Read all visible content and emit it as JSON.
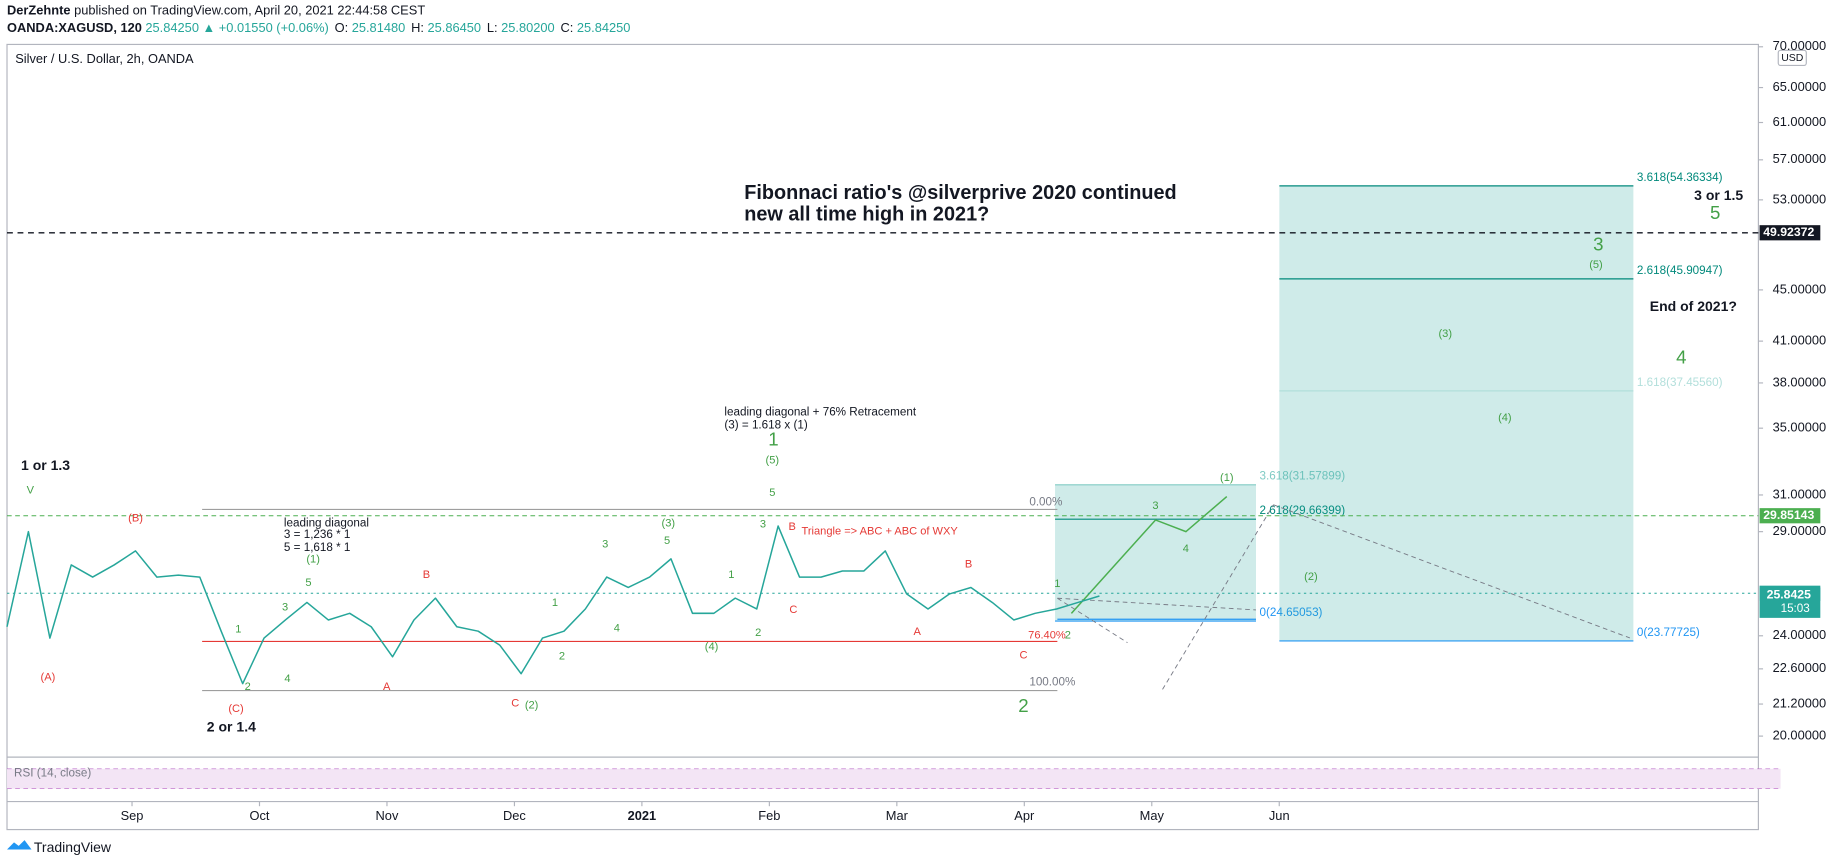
{
  "header": {
    "author": "DerZehnte",
    "published": "published on TradingView.com, April 20, 2021 22:44:58 CEST",
    "quote": [
      "OANDA:XAGUSD, 120",
      "25.84250 ▲ +0.01550 (+0.06%)",
      "O:",
      "25.81480",
      "H:",
      "25.86450",
      "L:",
      "25.80200",
      "C:",
      "25.84250"
    ]
  },
  "chart_data": {
    "type": "line",
    "title": "Silver / U.S. Dollar, 2h, OANDA",
    "currency": "USD",
    "log_scale": true,
    "ylim": [
      19.25,
      70.3
    ],
    "yticks": [
      {
        "value": 70,
        "label": "70.00000"
      },
      {
        "value": 65,
        "label": "65.00000"
      },
      {
        "value": 61,
        "label": "61.00000"
      },
      {
        "value": 57,
        "label": "57.00000"
      },
      {
        "value": 53,
        "label": "53.00000"
      },
      {
        "value": 45,
        "label": "45.00000"
      },
      {
        "value": 41,
        "label": "41.00000"
      },
      {
        "value": 38,
        "label": "38.00000"
      },
      {
        "value": 35,
        "label": "35.00000"
      },
      {
        "value": 31,
        "label": "31.00000"
      },
      {
        "value": 29,
        "label": "29.00000"
      },
      {
        "value": 24,
        "label": "24.00000"
      },
      {
        "value": 22.6,
        "label": "22.60000"
      },
      {
        "value": 21.2,
        "label": "21.20000"
      },
      {
        "value": 20,
        "label": "20.00000"
      }
    ],
    "x_labels": [
      "Sep",
      "Oct",
      "Nov",
      "Dec",
      "2021",
      "Feb",
      "Mar",
      "Apr",
      "May",
      "Jun"
    ],
    "color": "#26a69a",
    "values": [
      24.4,
      29,
      23.9,
      27.3,
      26.7,
      27.3,
      28,
      26.7,
      26.8,
      26.7,
      24.2,
      22,
      23.9,
      24.7,
      25.5,
      24.7,
      25,
      24.4,
      23.1,
      24.7,
      25.7,
      24.4,
      24.2,
      23.6,
      22.4,
      23.9,
      24.2,
      25.2,
      26.7,
      26.2,
      26.7,
      27.6,
      25,
      25,
      25.7,
      25.2,
      29.3,
      26.7,
      26.7,
      27,
      27,
      28,
      25.9,
      25.2,
      25.9,
      26.2,
      25.5,
      24.7,
      25,
      25.2,
      25.5,
      25.8
    ],
    "price_lines": [
      {
        "value": 49.92372,
        "color": "#131722"
      },
      {
        "value": 29.85143,
        "color": "#4caf50"
      },
      {
        "value": 25.92845,
        "color": "#26a69a"
      },
      {
        "value": 25.8425,
        "color": "#26a69a"
      }
    ],
    "countdown": "15:03",
    "fib_boxes": [
      {
        "levels": [
          {
            "value": 31.57899,
            "label": "3.618(31.57899)",
            "color": "#80cbc4"
          },
          {
            "value": 29.66399,
            "label": "2.618(29.66399)",
            "color": "#00897b"
          },
          {
            "value": 24.65053,
            "label": "0(24.65053)",
            "color": "#2196f3"
          }
        ]
      },
      {
        "levels": [
          {
            "value": 54.36334,
            "label": "3.618(54.36334)",
            "color": "#00897b"
          },
          {
            "value": 45.90947,
            "label": "2.618(45.90947)",
            "color": "#00897b"
          },
          {
            "value": 37.4556,
            "label": "1.618(37.45560)",
            "color": "#b2dfdb"
          },
          {
            "value": 23.77725,
            "label": "0(23.77725)",
            "color": "#2196f3"
          }
        ]
      }
    ],
    "indicator": "RSI (14, close)",
    "annotations": [
      {
        "text": "Fibonnaci ratio's @silverprive 2020 continued",
        "style": "h"
      },
      {
        "text": "new all time high in 2021?",
        "style": "h"
      },
      {
        "text": "1 or 1.3",
        "style": "b"
      },
      {
        "text": "2 or 1.4",
        "style": "b"
      },
      {
        "text": "3 or 1.5",
        "style": "b"
      },
      {
        "text": "End of 2021?",
        "style": "b"
      },
      {
        "text": "leading diagonal + 76% Retracement",
        "style": "n"
      },
      {
        "text": "(3) = 1.618 x (1)",
        "style": "n"
      },
      {
        "text": "leading diagonal",
        "style": "n"
      },
      {
        "text": "3 = 1,236 * 1",
        "style": "n"
      },
      {
        "text": "5 = 1,618 * 1",
        "style": "n"
      },
      {
        "text": "V",
        "style": "g"
      },
      {
        "text": "1",
        "style": "G"
      },
      {
        "text": "(5)",
        "style": "g"
      },
      {
        "text": "5",
        "style": "g"
      },
      {
        "text": "3",
        "style": "g"
      },
      {
        "text": "(3)",
        "style": "g"
      },
      {
        "text": "5",
        "style": "g"
      },
      {
        "text": "3",
        "style": "g"
      },
      {
        "text": "1",
        "style": "g"
      },
      {
        "text": "2",
        "style": "g"
      },
      {
        "text": "(4)",
        "style": "g"
      },
      {
        "text": "4",
        "style": "g"
      },
      {
        "text": "1",
        "style": "g"
      },
      {
        "text": "2",
        "style": "g"
      },
      {
        "text": "(2)",
        "style": "g"
      },
      {
        "text": "5",
        "style": "g"
      },
      {
        "text": "(1)",
        "style": "g"
      },
      {
        "text": "3",
        "style": "g"
      },
      {
        "text": "1",
        "style": "g"
      },
      {
        "text": "2",
        "style": "g"
      },
      {
        "text": "4",
        "style": "g"
      },
      {
        "text": "2",
        "style": "G"
      },
      {
        "text": "1",
        "style": "g"
      },
      {
        "text": "2",
        "style": "g"
      },
      {
        "text": "3",
        "style": "g"
      },
      {
        "text": "4",
        "style": "g"
      },
      {
        "text": "(1)",
        "style": "g"
      },
      {
        "text": "(2)",
        "style": "g"
      },
      {
        "text": "(4)",
        "style": "g"
      },
      {
        "text": "(3)",
        "style": "g"
      },
      {
        "text": "(5)",
        "style": "g"
      },
      {
        "text": "3",
        "style": "G"
      },
      {
        "text": "4",
        "style": "G"
      },
      {
        "text": "5",
        "style": "G"
      },
      {
        "text": "(B)",
        "style": "r"
      },
      {
        "text": "(A)",
        "style": "r"
      },
      {
        "text": "(C)",
        "style": "r"
      },
      {
        "text": "B",
        "style": "r"
      },
      {
        "text": "A",
        "style": "r"
      },
      {
        "text": "C",
        "style": "r"
      },
      {
        "text": "B",
        "style": "r"
      },
      {
        "text": "C",
        "style": "r"
      },
      {
        "text": "B",
        "style": "r"
      },
      {
        "text": "A",
        "style": "r"
      },
      {
        "text": "C",
        "style": "r"
      },
      {
        "text": "Triangle => ABC + ABC of WXY",
        "style": "rs"
      },
      {
        "text": "76.40%",
        "style": "rs"
      },
      {
        "text": "0.00%",
        "style": "p"
      },
      {
        "text": "100.00%",
        "style": "p"
      }
    ]
  },
  "footer": "TradingView"
}
